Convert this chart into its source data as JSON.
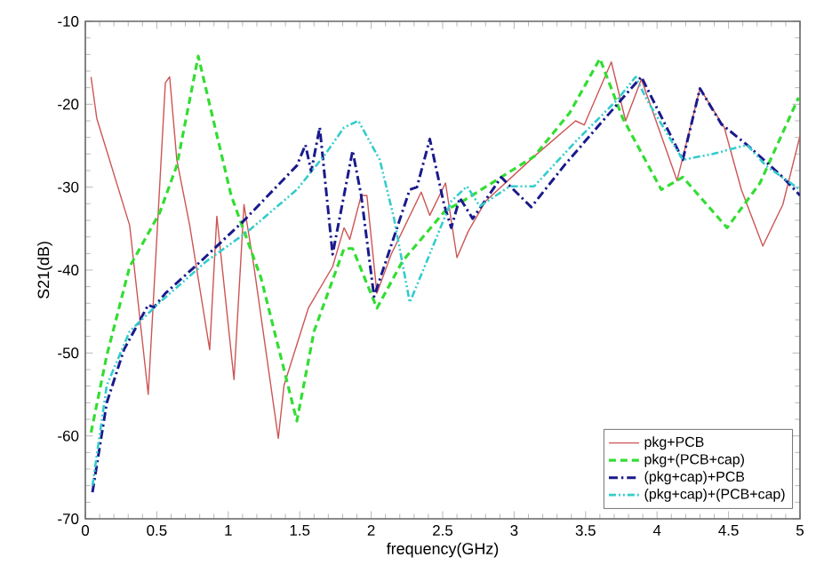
{
  "chart_data": {
    "type": "line",
    "xlabel": "frequency(GHz)",
    "ylabel": "S21(dB)",
    "xlim": [
      0,
      5
    ],
    "ylim": [
      -70,
      -10
    ],
    "xticks": [
      0,
      0.5,
      1,
      1.5,
      2,
      2.5,
      3,
      3.5,
      4,
      4.5,
      5
    ],
    "yticks": [
      -70,
      -60,
      -50,
      -40,
      -30,
      -20,
      -10
    ],
    "legend": "bottom right",
    "series": [
      {
        "name": "pkg+PCB",
        "color": "#cc5555",
        "line_style": "solid",
        "x": [
          0.04,
          0.08,
          0.31,
          0.44,
          0.56,
          0.59,
          0.64,
          0.73,
          0.87,
          0.92,
          1.04,
          1.11,
          1.18,
          1.35,
          1.39,
          1.56,
          1.73,
          1.81,
          1.85,
          1.93,
          1.97,
          2.04,
          2.14,
          2.35,
          2.41,
          2.52,
          2.6,
          2.68,
          2.8,
          3.14,
          3.43,
          3.49,
          3.68,
          3.78,
          3.89,
          4.14,
          4.3,
          4.47,
          4.59,
          4.74,
          4.88,
          5.0
        ],
        "values": [
          -16.7,
          -21.7,
          -34.6,
          -55,
          -17.4,
          -16.7,
          -26.7,
          -34.6,
          -49.6,
          -33.5,
          -53.2,
          -32.1,
          -39.6,
          -60.3,
          -53.9,
          -44.6,
          -39.6,
          -34.9,
          -36.3,
          -31,
          -31,
          -42.8,
          -38.1,
          -30.6,
          -33.4,
          -29.5,
          -38.5,
          -35.3,
          -31.7,
          -26.3,
          -22,
          -22.5,
          -14.9,
          -22,
          -17,
          -29.2,
          -18.1,
          -22.8,
          -30.3,
          -37.1,
          -32.1,
          -23.8
        ]
      },
      {
        "name": "pkg+(PCB+cap)",
        "color": "#33dd33",
        "line_style": "dashed",
        "x": [
          0.04,
          0.15,
          0.31,
          0.52,
          0.64,
          0.79,
          1.02,
          1.23,
          1.48,
          1.6,
          1.81,
          1.87,
          2.04,
          2.22,
          2.52,
          2.64,
          3.14,
          3.39,
          3.6,
          3.76,
          4.03,
          4.18,
          4.49,
          4.72,
          4.99
        ],
        "values": [
          -59.6,
          -50.3,
          -39.6,
          -33.1,
          -27.4,
          -14.2,
          -31,
          -41,
          -58.2,
          -47.4,
          -37.4,
          -37.4,
          -44.6,
          -38.9,
          -32.8,
          -31.7,
          -26.3,
          -21,
          -14.5,
          -21.7,
          -30.3,
          -28.8,
          -34.9,
          -29.5,
          -19.2
        ]
      },
      {
        "name": "(pkg+cap)+PCB",
        "color": "#1a1a8c",
        "line_style": "dashdot",
        "x": [
          0.05,
          0.15,
          0.27,
          0.44,
          0.48,
          0.56,
          0.81,
          1.1,
          1.48,
          1.54,
          1.58,
          1.64,
          1.73,
          1.87,
          1.93,
          2.02,
          2.27,
          2.32,
          2.41,
          2.51,
          2.56,
          2.62,
          2.71,
          2.91,
          2.99,
          3.12,
          3.35,
          3.6,
          3.89,
          4.18,
          4.3,
          4.45,
          4.63,
          4.88,
          5.0
        ],
        "values": [
          -66.8,
          -56,
          -49.6,
          -44.2,
          -44.5,
          -42.8,
          -38.9,
          -34.2,
          -27.4,
          -24.9,
          -28.1,
          -22.8,
          -38.1,
          -25.6,
          -31,
          -43.2,
          -30.3,
          -30,
          -24.2,
          -32.1,
          -34.9,
          -31.3,
          -33.8,
          -28.8,
          -30.2,
          -32.4,
          -27.4,
          -22.4,
          -16.7,
          -26.7,
          -18.1,
          -22.4,
          -24.9,
          -28.8,
          -31
        ]
      },
      {
        "name": "(pkg+cap)+(PCB+cap)",
        "color": "#33cccc",
        "line_style": "dashdotdot",
        "x": [
          0.05,
          0.15,
          0.31,
          0.52,
          0.85,
          1.14,
          1.48,
          1.68,
          1.81,
          1.91,
          2.06,
          2.16,
          2.27,
          2.39,
          2.56,
          2.67,
          2.76,
          2.97,
          3.14,
          3.43,
          3.72,
          3.85,
          3.93,
          4.18,
          4.39,
          4.63,
          4.76,
          5.0
        ],
        "values": [
          -66,
          -53.9,
          -47.4,
          -43.9,
          -38.9,
          -35.3,
          -30.3,
          -26,
          -22.8,
          -22,
          -26.7,
          -33.8,
          -43.9,
          -38.9,
          -31.7,
          -29.9,
          -32.3,
          -29.9,
          -29.9,
          -24.5,
          -19.5,
          -16.7,
          -19.5,
          -26.7,
          -26,
          -24.9,
          -27.4,
          -30.3
        ]
      }
    ]
  }
}
